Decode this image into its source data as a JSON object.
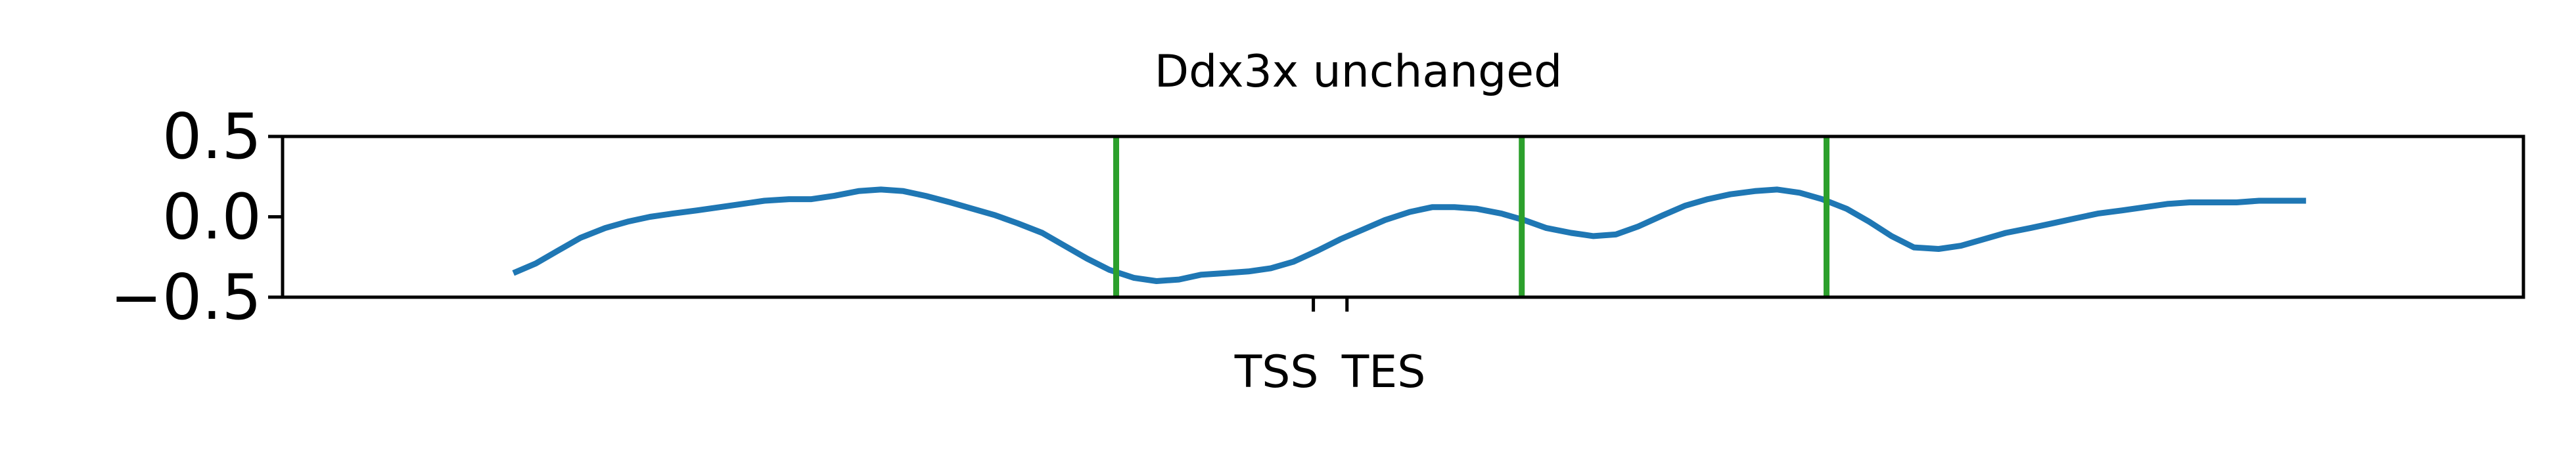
{
  "chart_data": {
    "type": "line",
    "title": "Ddx3x unchanged",
    "xlabel": "",
    "ylabel": "",
    "xlim": [
      0,
      100
    ],
    "ylim": [
      -0.5,
      0.5
    ],
    "yticks": [
      {
        "value": 0.5,
        "label": "0.5"
      },
      {
        "value": 0.0,
        "label": "0.0"
      },
      {
        "value": -0.5,
        "label": "−0.5"
      }
    ],
    "xticks": [
      {
        "value": 46.0,
        "label": "TSS"
      },
      {
        "value": 47.5,
        "label": "TES"
      }
    ],
    "grid": false,
    "legend": "none",
    "series": [
      {
        "color": "#1f77b4",
        "x": [
          10.3,
          11.3,
          12.3,
          13.3,
          14.4,
          15.4,
          16.4,
          17.4,
          18.5,
          19.5,
          20.5,
          21.5,
          22.6,
          23.6,
          24.6,
          25.7,
          26.7,
          27.7,
          28.7,
          29.8,
          30.8,
          31.8,
          32.8,
          33.9,
          34.9,
          35.9,
          36.9,
          38.0,
          39.0,
          40.0,
          41.0,
          42.1,
          43.1,
          44.1,
          45.1,
          46.2,
          47.2,
          48.2,
          49.2,
          50.3,
          51.3,
          52.3,
          53.3,
          54.4,
          55.4,
          56.4,
          57.5,
          58.5,
          59.5,
          60.5,
          61.6,
          62.6,
          63.6,
          64.6,
          65.7,
          66.7,
          67.7,
          68.7,
          69.8,
          70.8,
          71.8,
          72.8,
          73.9,
          74.9,
          75.9,
          76.9,
          78.0,
          79.0,
          80.0,
          81.0,
          82.1,
          83.1,
          84.1,
          85.1,
          86.2,
          87.2,
          88.2,
          89.2,
          90.3
        ],
        "y": [
          -0.35,
          -0.29,
          -0.21,
          -0.13,
          -0.07,
          -0.03,
          0.0,
          0.02,
          0.04,
          0.06,
          0.08,
          0.1,
          0.11,
          0.11,
          0.13,
          0.16,
          0.17,
          0.16,
          0.13,
          0.09,
          0.05,
          0.01,
          -0.04,
          -0.1,
          -0.18,
          -0.26,
          -0.33,
          -0.38,
          -0.4,
          -0.39,
          -0.36,
          -0.35,
          -0.34,
          -0.32,
          -0.28,
          -0.21,
          -0.14,
          -0.08,
          -0.02,
          0.03,
          0.06,
          0.06,
          0.05,
          0.02,
          -0.02,
          -0.07,
          -0.1,
          -0.12,
          -0.11,
          -0.06,
          0.01,
          0.07,
          0.11,
          0.14,
          0.16,
          0.17,
          0.15,
          0.11,
          0.05,
          -0.03,
          -0.12,
          -0.19,
          -0.2,
          -0.18,
          -0.14,
          -0.1,
          -0.07,
          -0.04,
          -0.01,
          0.02,
          0.04,
          0.06,
          0.08,
          0.09,
          0.09,
          0.09,
          0.1,
          0.1,
          0.1
        ]
      }
    ],
    "vlines": [
      {
        "x": 37.2,
        "color": "#2ca02c"
      },
      {
        "x": 55.3,
        "color": "#2ca02c"
      },
      {
        "x": 68.9,
        "color": "#2ca02c"
      }
    ]
  }
}
